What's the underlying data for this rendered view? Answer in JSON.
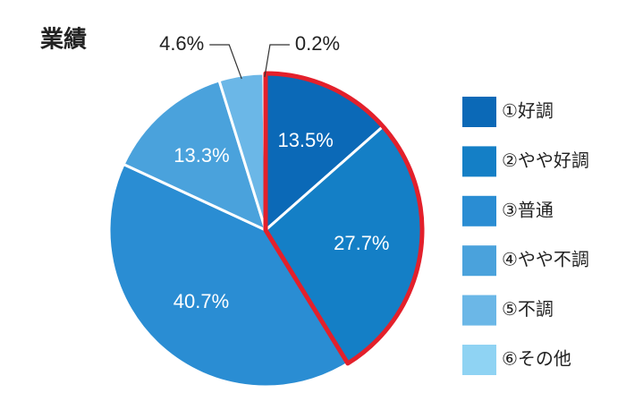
{
  "chart_data": {
    "type": "pie",
    "title": "業績",
    "categories": [
      "①好調",
      "②やや好調",
      "③普通",
      "④やや不調",
      "⑤不調",
      "⑥その他"
    ],
    "values": [
      13.5,
      27.7,
      40.7,
      13.3,
      4.6,
      0.2
    ],
    "value_labels": [
      "13.5%",
      "27.7%",
      "40.7%",
      "13.3%",
      "4.6%",
      "0.2%"
    ],
    "colors": [
      "#0b69b7",
      "#147fc6",
      "#2a8dd3",
      "#4aa2dc",
      "#6bb7e7",
      "#8fd3f3"
    ],
    "highlight": [
      0,
      1
    ],
    "highlight_color": "#e3202b"
  }
}
